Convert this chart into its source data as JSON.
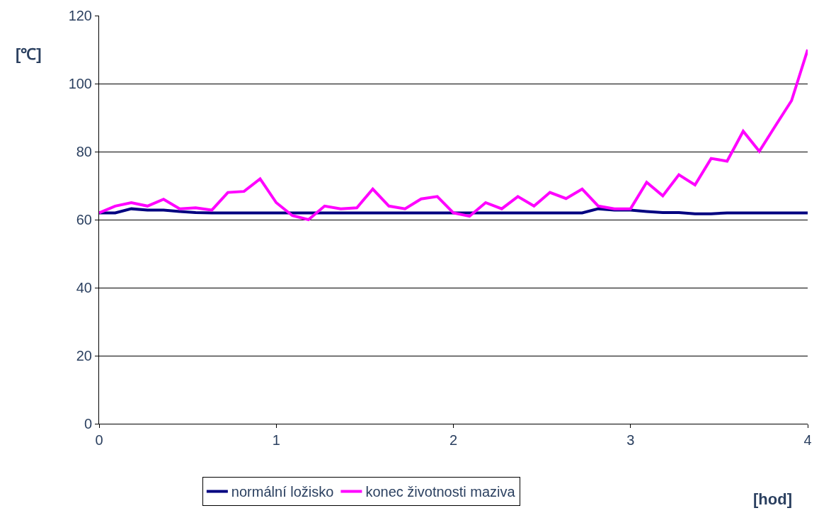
{
  "chart_data": {
    "type": "line",
    "ylabel": "[℃]",
    "xlabel": "[hod]",
    "x": [
      0,
      0.091,
      0.182,
      0.273,
      0.364,
      0.455,
      0.545,
      0.636,
      0.727,
      0.818,
      0.909,
      1.0,
      1.091,
      1.182,
      1.273,
      1.364,
      1.455,
      1.545,
      1.636,
      1.727,
      1.818,
      1.909,
      2.0,
      2.091,
      2.182,
      2.273,
      2.364,
      2.455,
      2.545,
      2.636,
      2.727,
      2.818,
      2.909,
      3.0,
      3.091,
      3.182,
      3.273,
      3.364,
      3.455,
      3.545,
      3.636,
      3.727,
      3.818,
      3.909,
      4.0
    ],
    "series": [
      {
        "name": "normální ložisko",
        "color": "#000080",
        "values": [
          62,
          62,
          63.2,
          62.8,
          62.8,
          62.4,
          62.1,
          62,
          62,
          62,
          62,
          62,
          62,
          62,
          62,
          62,
          62,
          62,
          62,
          62,
          62,
          62,
          62,
          62,
          62,
          62,
          62,
          62,
          62,
          62,
          62,
          63.2,
          62.8,
          62.8,
          62.4,
          62.1,
          62.1,
          61.7,
          61.7,
          62,
          62,
          62,
          62,
          62,
          62
        ]
      },
      {
        "name": "konec životnosti maziva",
        "color": "#ff00ff",
        "values": [
          62,
          64,
          65,
          64,
          66,
          63.2,
          63.5,
          62.8,
          68,
          68.3,
          72,
          65,
          61.2,
          60,
          64,
          63.2,
          63.5,
          69,
          64,
          63.2,
          66.1,
          66.8,
          62,
          61,
          65,
          63.2,
          66.8,
          64,
          68,
          66.2,
          69,
          64,
          63.2,
          63.2,
          71,
          67,
          73.2,
          70.2,
          78,
          77.2,
          86,
          80.1,
          87.6,
          95,
          110
        ]
      }
    ],
    "xlim": [
      0,
      4
    ],
    "xticks": [
      0,
      1,
      2,
      3,
      4
    ],
    "ylim": [
      0,
      120
    ],
    "yticks": [
      0,
      20,
      40,
      60,
      80,
      100,
      120
    ],
    "grid": "y",
    "legend": "bottom",
    "marker": "none",
    "line_style": "solid"
  }
}
